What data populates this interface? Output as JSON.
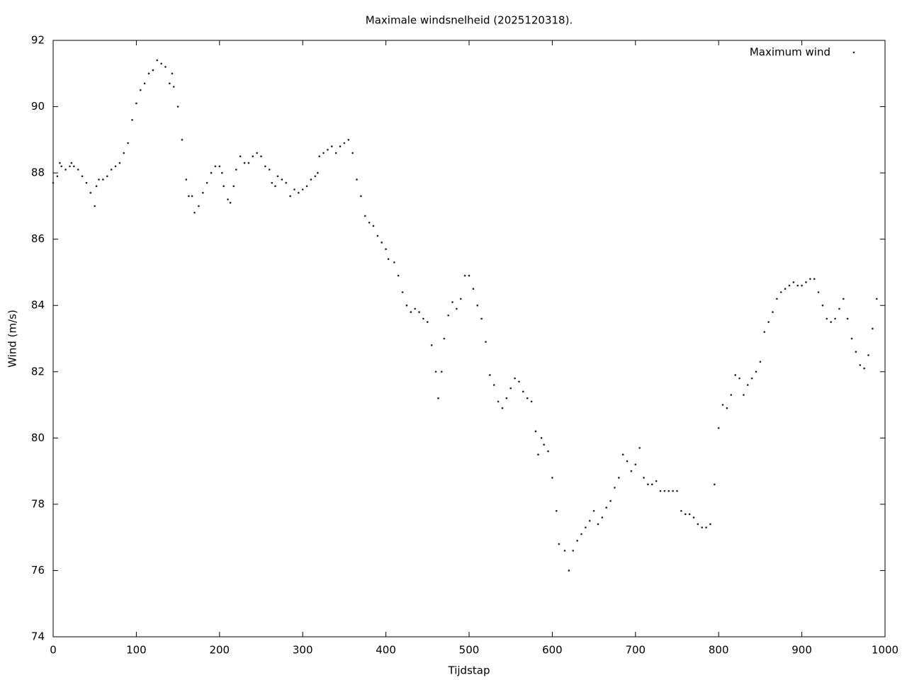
{
  "chart_data": {
    "type": "scatter",
    "title": "Maximale windsnelheid (2025120318).",
    "x_label": "Tijdstap",
    "y_label": "Wind (m/s)",
    "xlim": [
      0,
      1000
    ],
    "ylim": [
      74,
      92
    ],
    "xticks": [
      0,
      100,
      200,
      300,
      400,
      500,
      600,
      700,
      800,
      900,
      1000
    ],
    "yticks": [
      74,
      76,
      78,
      80,
      82,
      84,
      86,
      88,
      90,
      92
    ],
    "legend": "top right",
    "grid": false,
    "x": [
      0,
      5,
      8,
      10,
      15,
      20,
      22,
      25,
      30,
      35,
      40,
      45,
      50,
      52,
      55,
      60,
      65,
      70,
      75,
      80,
      85,
      90,
      95,
      100,
      105,
      110,
      115,
      120,
      125,
      130,
      135,
      140,
      143,
      145,
      150,
      155,
      160,
      163,
      167,
      170,
      175,
      180,
      185,
      190,
      195,
      200,
      203,
      205,
      210,
      213,
      217,
      220,
      225,
      230,
      235,
      240,
      245,
      250,
      255,
      260,
      263,
      267,
      270,
      275,
      280,
      285,
      290,
      295,
      300,
      305,
      310,
      315,
      318,
      320,
      325,
      330,
      335,
      340,
      345,
      350,
      355,
      360,
      365,
      370,
      375,
      380,
      385,
      390,
      395,
      400,
      403,
      410,
      415,
      420,
      425,
      430,
      435,
      440,
      445,
      450,
      455,
      460,
      463,
      467,
      470,
      475,
      480,
      485,
      490,
      495,
      500,
      505,
      510,
      515,
      520,
      525,
      530,
      535,
      540,
      545,
      550,
      555,
      560,
      565,
      570,
      575,
      580,
      583,
      587,
      590,
      595,
      600,
      605,
      608,
      615,
      620,
      625,
      630,
      635,
      640,
      645,
      650,
      655,
      660,
      665,
      670,
      675,
      680,
      685,
      690,
      695,
      700,
      705,
      710,
      715,
      720,
      725,
      730,
      735,
      740,
      745,
      750,
      755,
      760,
      765,
      770,
      775,
      780,
      785,
      790,
      795,
      800,
      805,
      810,
      815,
      820,
      825,
      830,
      835,
      840,
      845,
      850,
      855,
      860,
      865,
      870,
      875,
      880,
      885,
      890,
      895,
      900,
      905,
      910,
      915,
      920,
      925,
      930,
      935,
      940,
      945,
      950,
      955,
      960,
      965,
      970,
      975,
      980,
      985,
      990
    ],
    "series": [
      {
        "name": "Maximum wind",
        "color": "#202020",
        "values": [
          87.7,
          87.9,
          88.3,
          88.2,
          88.1,
          88.2,
          88.3,
          88.2,
          88.1,
          87.9,
          87.7,
          87.4,
          87.0,
          87.6,
          87.8,
          87.8,
          87.9,
          88.1,
          88.2,
          88.3,
          88.6,
          88.9,
          89.6,
          90.1,
          90.5,
          90.7,
          91.0,
          91.1,
          91.4,
          91.3,
          91.2,
          90.7,
          91.0,
          90.6,
          90.0,
          89.0,
          87.8,
          87.3,
          87.3,
          86.8,
          87.0,
          87.4,
          87.7,
          88.0,
          88.2,
          88.2,
          88.0,
          87.6,
          87.2,
          87.1,
          87.6,
          88.1,
          88.5,
          88.3,
          88.3,
          88.5,
          88.6,
          88.5,
          88.2,
          88.1,
          87.7,
          87.6,
          87.9,
          87.8,
          87.7,
          87.3,
          87.5,
          87.4,
          87.5,
          87.6,
          87.8,
          87.9,
          88.0,
          88.5,
          88.6,
          88.7,
          88.8,
          88.6,
          88.8,
          88.9,
          89.0,
          88.6,
          87.8,
          87.3,
          86.7,
          86.5,
          86.4,
          86.1,
          85.9,
          85.7,
          85.4,
          85.3,
          84.9,
          84.4,
          84.0,
          83.8,
          83.9,
          83.8,
          83.6,
          83.5,
          82.8,
          82.0,
          81.2,
          82.0,
          83.0,
          83.7,
          84.1,
          83.9,
          84.2,
          84.9,
          84.9,
          84.5,
          84.0,
          83.6,
          82.9,
          81.9,
          81.6,
          81.1,
          80.9,
          81.2,
          81.5,
          81.8,
          81.7,
          81.4,
          81.2,
          81.1,
          80.2,
          79.5,
          80.0,
          79.8,
          79.6,
          78.8,
          77.8,
          76.8,
          76.6,
          76.0,
          76.6,
          76.9,
          77.1,
          77.3,
          77.5,
          77.8,
          77.4,
          77.6,
          77.9,
          78.1,
          78.5,
          78.8,
          79.5,
          79.3,
          79.0,
          79.2,
          79.7,
          78.8,
          78.6,
          78.6,
          78.7,
          78.4,
          78.4,
          78.4,
          78.4,
          78.4,
          77.8,
          77.7,
          77.7,
          77.6,
          77.4,
          77.3,
          77.3,
          77.4,
          78.6,
          80.3,
          81.0,
          80.9,
          81.3,
          81.9,
          81.8,
          81.3,
          81.6,
          81.8,
          82.0,
          82.3,
          83.2,
          83.5,
          83.8,
          84.2,
          84.4,
          84.5,
          84.6,
          84.7,
          84.6,
          84.6,
          84.7,
          84.8,
          84.8,
          84.4,
          84.0,
          83.6,
          83.5,
          83.6,
          83.9,
          84.2,
          83.6,
          83.0,
          82.6,
          82.2,
          82.1,
          82.5,
          83.3,
          84.2
        ]
      }
    ]
  }
}
